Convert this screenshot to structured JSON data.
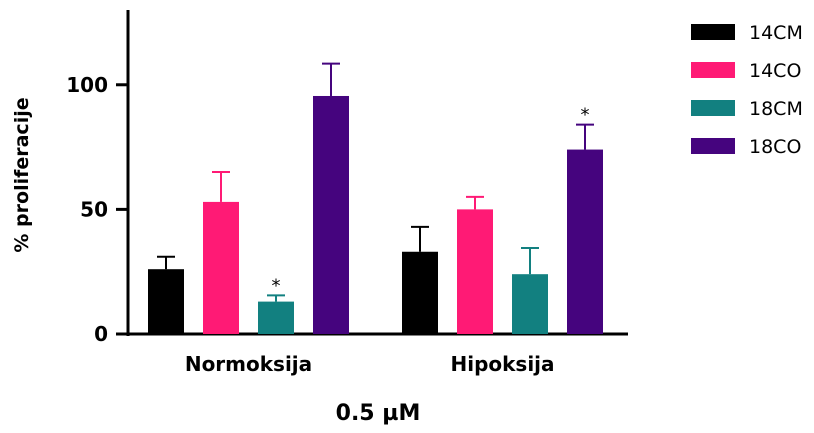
{
  "chart_data": {
    "type": "bar",
    "categories": [
      "Normoksija",
      "Hipoksija"
    ],
    "xlabel": "0.5 µM",
    "ylabel": "% proliferacije",
    "ylim": [
      0,
      130
    ],
    "yticks": [
      "0",
      "50",
      "100"
    ],
    "series": [
      {
        "name": "14CM",
        "color": "#000000",
        "values": [
          26,
          33
        ],
        "errors": [
          5,
          10
        ],
        "significance": [
          "",
          ""
        ]
      },
      {
        "name": "14CO",
        "color": "#ff1a75",
        "values": [
          53,
          50
        ],
        "errors": [
          12,
          5
        ],
        "significance": [
          "",
          ""
        ]
      },
      {
        "name": "18CM",
        "color": "#128080",
        "values": [
          13,
          24
        ],
        "errors": [
          2.5,
          10.5
        ],
        "significance": [
          "*",
          ""
        ]
      },
      {
        "name": "18CO",
        "color": "#45047e",
        "values": [
          95.5,
          74
        ],
        "errors": [
          13,
          10
        ],
        "significance": [
          "",
          "*"
        ]
      }
    ],
    "legend_position": "top-right",
    "grid": false
  }
}
